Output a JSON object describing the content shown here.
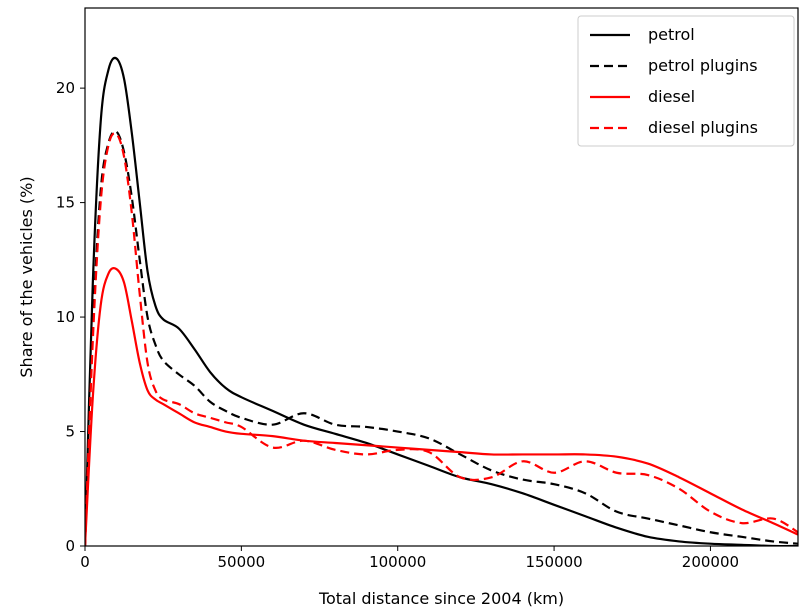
{
  "chart_data": {
    "type": "line",
    "title": "",
    "xlabel": "Total distance since 2004 (km)",
    "ylabel": "Share of the vehicles (%)",
    "xlim": [
      0,
      228000
    ],
    "ylim": [
      0,
      23.5
    ],
    "xticks": [
      0,
      50000,
      100000,
      150000,
      200000
    ],
    "yticks": [
      0,
      5,
      10,
      15,
      20
    ],
    "grid": false,
    "legend": "top-right",
    "series": [
      {
        "name": "petrol",
        "color": "#000000",
        "dash": "solid",
        "x": [
          0,
          2500,
          5000,
          7500,
          10000,
          12500,
          15000,
          17500,
          20000,
          22500,
          25000,
          30000,
          35000,
          40000,
          45000,
          50000,
          60000,
          70000,
          80000,
          90000,
          100000,
          110000,
          120000,
          130000,
          140000,
          150000,
          160000,
          170000,
          180000,
          190000,
          200000,
          210000,
          220000,
          228000
        ],
        "y": [
          0,
          11.5,
          18.5,
          20.8,
          21.3,
          20.4,
          18.0,
          15.0,
          12.0,
          10.5,
          9.9,
          9.5,
          8.6,
          7.6,
          6.9,
          6.5,
          5.9,
          5.3,
          4.9,
          4.5,
          4.0,
          3.5,
          3.0,
          2.7,
          2.3,
          1.8,
          1.3,
          0.8,
          0.4,
          0.2,
          0.1,
          0.05,
          0.0,
          0.0
        ]
      },
      {
        "name": "petrol plugins",
        "color": "#000000",
        "dash": "dashed",
        "x": [
          0,
          2500,
          5000,
          7500,
          10000,
          12500,
          15000,
          17500,
          20000,
          22500,
          25000,
          30000,
          35000,
          40000,
          45000,
          50000,
          60000,
          70000,
          80000,
          90000,
          100000,
          110000,
          120000,
          130000,
          140000,
          150000,
          160000,
          170000,
          180000,
          190000,
          200000,
          210000,
          220000,
          228000
        ],
        "y": [
          0,
          9.5,
          15.5,
          17.6,
          18.1,
          17.2,
          15.2,
          12.5,
          10.0,
          8.8,
          8.1,
          7.5,
          7.0,
          6.3,
          5.9,
          5.6,
          5.3,
          5.8,
          5.3,
          5.2,
          5.0,
          4.7,
          4.0,
          3.3,
          2.9,
          2.7,
          2.3,
          1.5,
          1.2,
          0.9,
          0.6,
          0.4,
          0.2,
          0.1
        ]
      },
      {
        "name": "diesel",
        "color": "#ff0000",
        "dash": "solid",
        "x": [
          0,
          2500,
          5000,
          7500,
          10000,
          12500,
          15000,
          17500,
          20000,
          22500,
          25000,
          30000,
          35000,
          40000,
          45000,
          50000,
          60000,
          70000,
          80000,
          90000,
          100000,
          110000,
          120000,
          130000,
          140000,
          150000,
          160000,
          170000,
          180000,
          190000,
          200000,
          210000,
          220000,
          228000
        ],
        "y": [
          0,
          6.5,
          10.5,
          11.9,
          12.1,
          11.5,
          9.8,
          8.0,
          6.8,
          6.4,
          6.2,
          5.8,
          5.4,
          5.2,
          5.0,
          4.9,
          4.8,
          4.6,
          4.5,
          4.4,
          4.3,
          4.2,
          4.1,
          4.0,
          4.0,
          4.0,
          4.0,
          3.9,
          3.6,
          3.0,
          2.3,
          1.6,
          1.0,
          0.5
        ]
      },
      {
        "name": "diesel plugins",
        "color": "#ff0000",
        "dash": "dashed",
        "x": [
          0,
          2500,
          5000,
          7500,
          10000,
          12500,
          15000,
          17500,
          20000,
          22500,
          25000,
          30000,
          35000,
          40000,
          45000,
          50000,
          60000,
          70000,
          80000,
          90000,
          100000,
          110000,
          120000,
          130000,
          140000,
          150000,
          160000,
          170000,
          180000,
          190000,
          200000,
          210000,
          220000,
          228000
        ],
        "y": [
          0,
          9.0,
          15.0,
          17.5,
          18.0,
          17.0,
          14.5,
          11.0,
          8.0,
          6.8,
          6.4,
          6.2,
          5.8,
          5.6,
          5.4,
          5.2,
          4.3,
          4.6,
          4.2,
          4.0,
          4.2,
          4.1,
          3.0,
          3.0,
          3.7,
          3.2,
          3.7,
          3.2,
          3.1,
          2.5,
          1.5,
          1.0,
          1.2,
          0.6
        ]
      }
    ]
  }
}
